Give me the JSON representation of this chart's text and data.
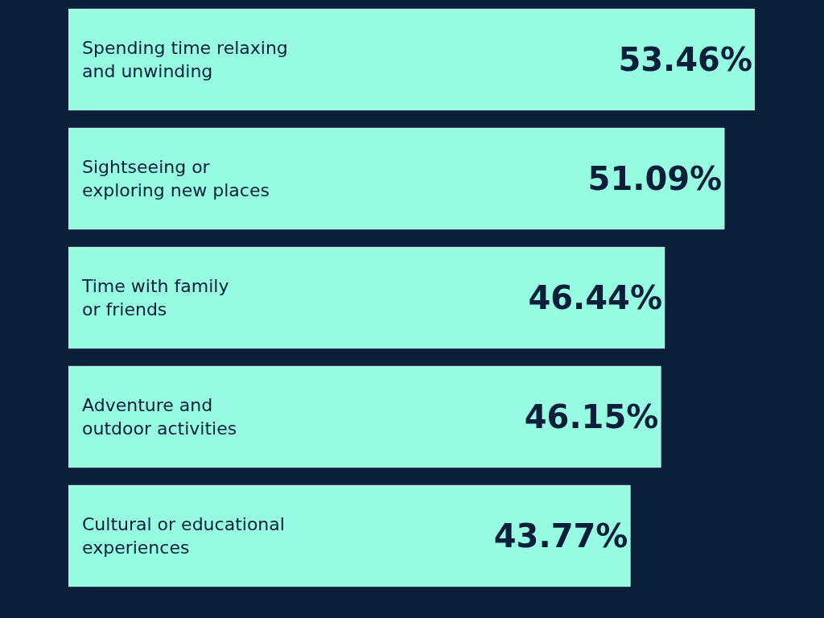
{
  "chart_data": {
    "type": "bar",
    "orientation": "horizontal",
    "categories": [
      "Spending time relaxing\nand unwinding",
      "Sightseeing or\nexploring new places",
      "Time with family\nor friends",
      "Adventure and\noutdoor activities",
      "Cultural or educational\nexperiences"
    ],
    "values": [
      53.46,
      51.09,
      46.44,
      46.15,
      43.77
    ],
    "value_labels": [
      "53.46%",
      "51.09%",
      "46.44%",
      "46.15%",
      "43.77%"
    ],
    "color": "#96fbe0",
    "grid": false
  }
}
